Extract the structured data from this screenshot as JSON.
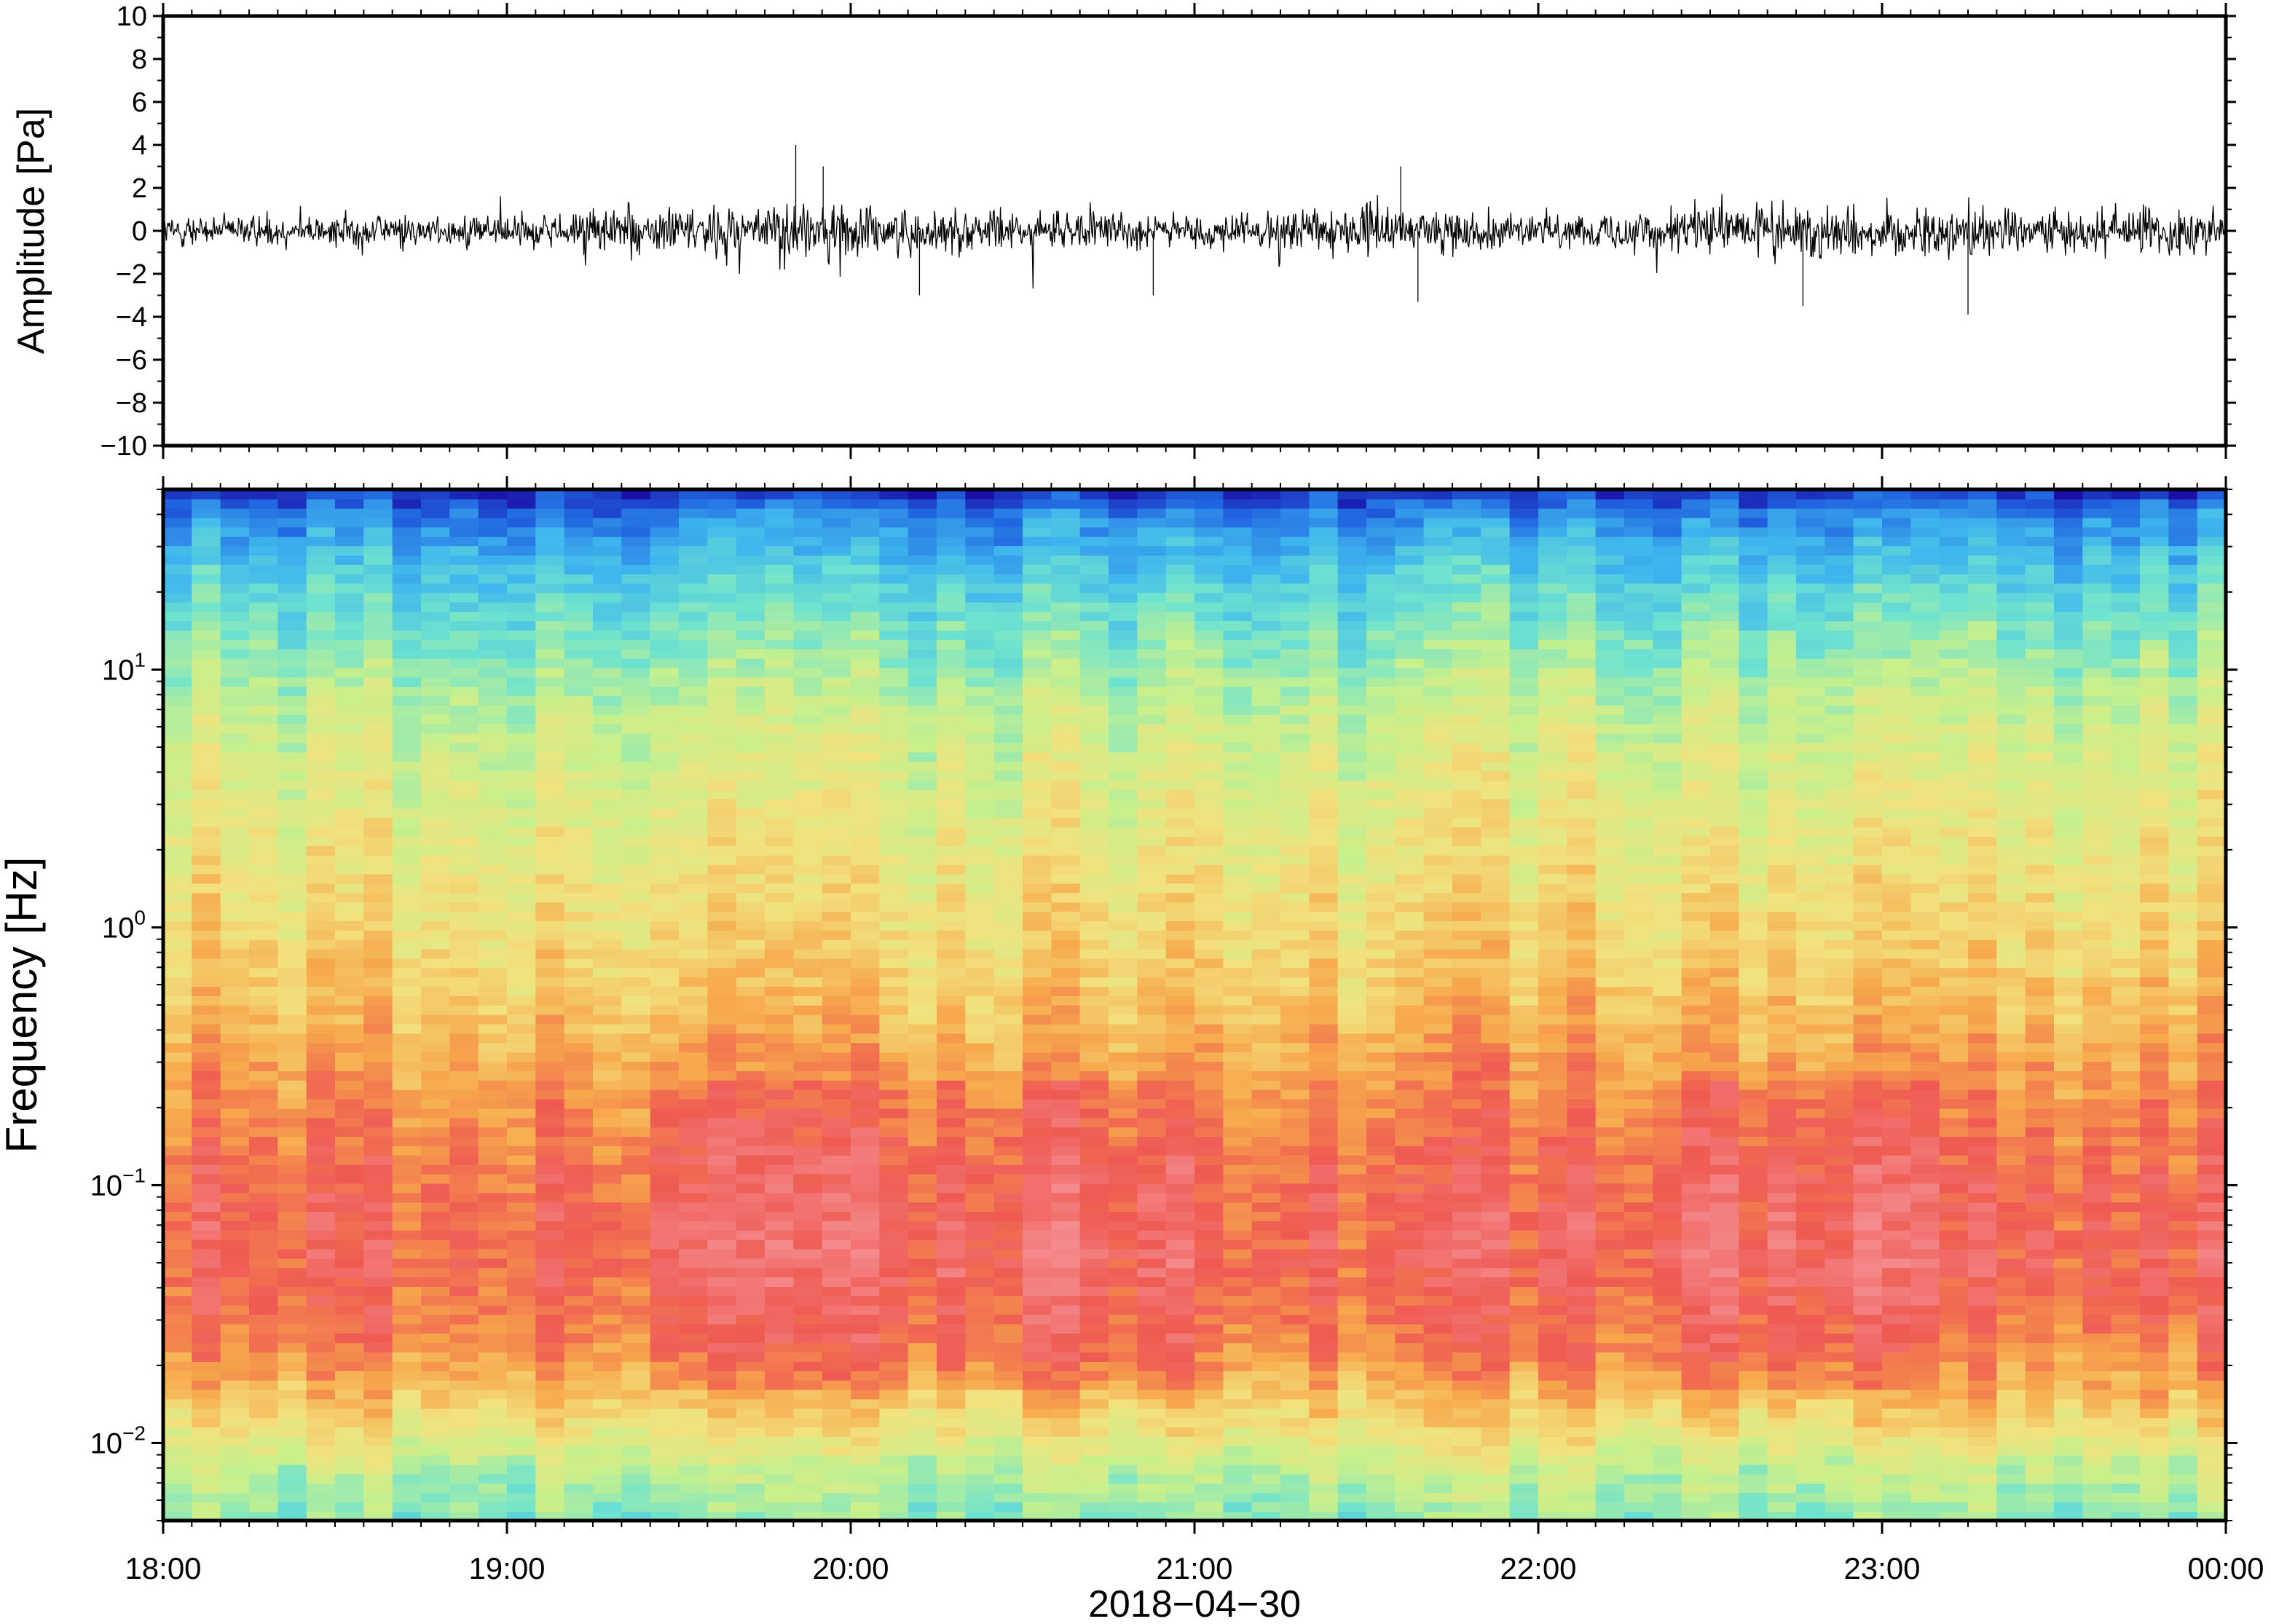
{
  "chart_data": [
    {
      "type": "line",
      "ylabel": "Amplitude [Pa]",
      "ylim": [
        -10,
        10
      ],
      "yticks": [
        "10",
        "8",
        "6",
        "4",
        "2",
        "0",
        "−2",
        "−4",
        "−6",
        "−8",
        "−10"
      ],
      "ytick_values": [
        10,
        8,
        6,
        4,
        2,
        0,
        -2,
        -4,
        -6,
        -8,
        -10
      ],
      "xlim": [
        "18:00",
        "00:00"
      ],
      "series": [
        {
          "color": "#000000",
          "envelope_hours": [
            18.0,
            18.5,
            19.0,
            19.5,
            19.8,
            20.0,
            20.5,
            21.0,
            21.5,
            22.0,
            22.5,
            22.75,
            23.0,
            23.5,
            24.0
          ],
          "envelope_pa": [
            1.2,
            1.3,
            1.5,
            2.2,
            2.6,
            2.2,
            1.6,
            1.4,
            2.0,
            1.3,
            2.1,
            2.5,
            2.2,
            1.9,
            2.1
          ],
          "peaks": [
            {
              "hour": 19.84,
              "value": 4.0
            },
            {
              "hour": 19.92,
              "value": 3.0
            },
            {
              "hour": 21.6,
              "value": 3.0
            },
            {
              "hour": 21.65,
              "value": -3.3
            },
            {
              "hour": 22.77,
              "value": -3.5
            },
            {
              "hour": 23.25,
              "value": -3.9
            },
            {
              "hour": 20.2,
              "value": -3.0
            },
            {
              "hour": 20.88,
              "value": -3.0
            }
          ]
        }
      ]
    },
    {
      "type": "heatmap",
      "ylabel": "Frequency [Hz]",
      "yscale": "log",
      "ylim_hz": [
        0.005,
        50
      ],
      "ytick_labels": [
        {
          "base": "10",
          "exp": "1",
          "value": 10
        },
        {
          "base": "10",
          "exp": "0",
          "value": 1
        },
        {
          "base": "10",
          "exp": "−1",
          "value": 0.1
        },
        {
          "base": "10",
          "exp": "−2",
          "value": 0.01
        }
      ],
      "xlabel": "2018−04−30",
      "categories": [
        "18:00",
        "19:00",
        "20:00",
        "21:00",
        "22:00",
        "23:00",
        "00:00"
      ],
      "x_hours": [
        18,
        19,
        20,
        21,
        22,
        23,
        24
      ],
      "colormap": [
        "#1b0fa8",
        "#2064e0",
        "#3fb6ee",
        "#6ee3cf",
        "#c8f08c",
        "#f2e27e",
        "#f7a94c",
        "#ef5a52",
        "#f48a8c"
      ],
      "profile": {
        "log10_freq": [
          -2.3,
          -2.1,
          -1.95,
          -1.8,
          -1.6,
          -1.3,
          -1.0,
          -0.6,
          -0.2,
          0.3,
          0.8,
          1.1,
          1.4,
          1.6,
          1.7
        ],
        "level": [
          0.42,
          0.5,
          0.62,
          0.72,
          0.82,
          0.88,
          0.86,
          0.78,
          0.68,
          0.6,
          0.52,
          0.42,
          0.3,
          0.18,
          0.05
        ]
      }
    }
  ]
}
